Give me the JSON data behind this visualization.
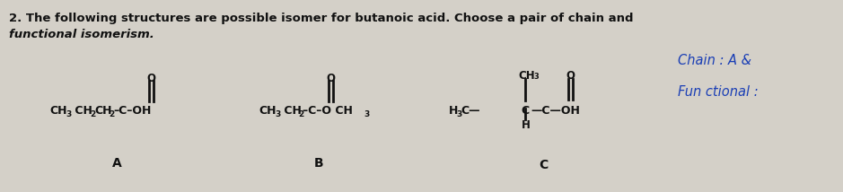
{
  "background_color": "#d4d0c8",
  "question_line1": "2. The following structures are possible isomer for butanoic acid. Choose a pair of chain and",
  "question_line2": "functional isomerism.",
  "chain_annotation": "Chain : A &",
  "functional_annotation": "Fun ctional :",
  "label_A": "A",
  "label_B": "B",
  "label_C": "C",
  "text_color": "#111111",
  "blue_color": "#1a3eb5",
  "figsize": [
    9.39,
    2.14
  ],
  "dpi": 100
}
